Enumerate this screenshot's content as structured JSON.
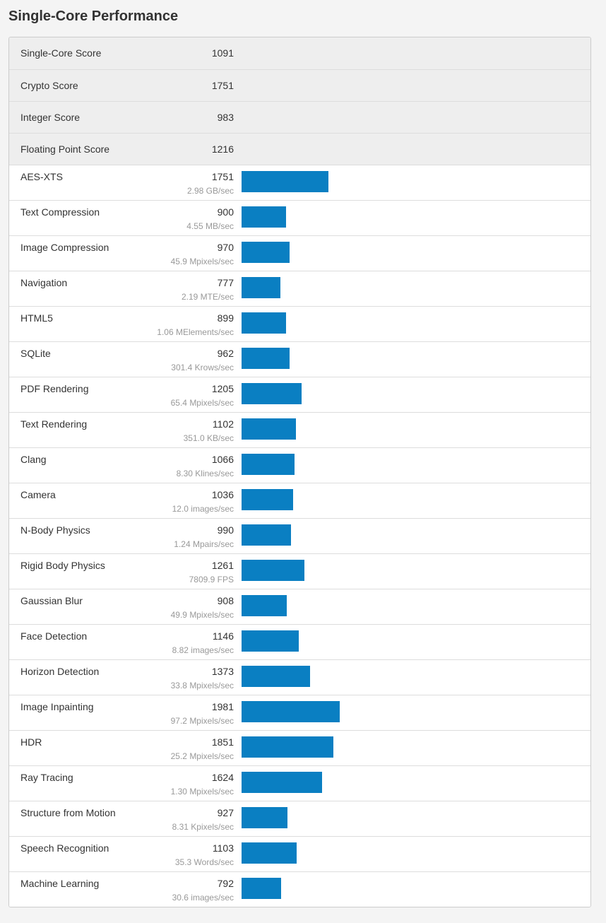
{
  "title": "Single-Core Performance",
  "summary": [
    {
      "name": "Single-Core Score",
      "score": 1091
    },
    {
      "name": "Crypto Score",
      "score": 1751
    },
    {
      "name": "Integer Score",
      "score": 983
    },
    {
      "name": "Floating Point Score",
      "score": 1216
    }
  ],
  "workloads": [
    {
      "name": "AES-XTS",
      "score": 1751,
      "rate": "2.98 GB/sec"
    },
    {
      "name": "Text Compression",
      "score": 900,
      "rate": "4.55 MB/sec"
    },
    {
      "name": "Image Compression",
      "score": 970,
      "rate": "45.9 Mpixels/sec"
    },
    {
      "name": "Navigation",
      "score": 777,
      "rate": "2.19 MTE/sec"
    },
    {
      "name": "HTML5",
      "score": 899,
      "rate": "1.06 MElements/sec"
    },
    {
      "name": "SQLite",
      "score": 962,
      "rate": "301.4 Krows/sec"
    },
    {
      "name": "PDF Rendering",
      "score": 1205,
      "rate": "65.4 Mpixels/sec"
    },
    {
      "name": "Text Rendering",
      "score": 1102,
      "rate": "351.0 KB/sec"
    },
    {
      "name": "Clang",
      "score": 1066,
      "rate": "8.30 Klines/sec"
    },
    {
      "name": "Camera",
      "score": 1036,
      "rate": "12.0 images/sec"
    },
    {
      "name": "N-Body Physics",
      "score": 990,
      "rate": "1.24 Mpairs/sec"
    },
    {
      "name": "Rigid Body Physics",
      "score": 1261,
      "rate": "7809.9 FPS"
    },
    {
      "name": "Gaussian Blur",
      "score": 908,
      "rate": "49.9 Mpixels/sec"
    },
    {
      "name": "Face Detection",
      "score": 1146,
      "rate": "8.82 images/sec"
    },
    {
      "name": "Horizon Detection",
      "score": 1373,
      "rate": "33.8 Mpixels/sec"
    },
    {
      "name": "Image Inpainting",
      "score": 1981,
      "rate": "97.2 Mpixels/sec"
    },
    {
      "name": "HDR",
      "score": 1851,
      "rate": "25.2 Mpixels/sec"
    },
    {
      "name": "Ray Tracing",
      "score": 1624,
      "rate": "1.30 Mpixels/sec"
    },
    {
      "name": "Structure from Motion",
      "score": 927,
      "rate": "8.31 Kpixels/sec"
    },
    {
      "name": "Speech Recognition",
      "score": 1103,
      "rate": "35.3 Words/sec"
    },
    {
      "name": "Machine Learning",
      "score": 792,
      "rate": "30.6 images/sec"
    }
  ]
}
